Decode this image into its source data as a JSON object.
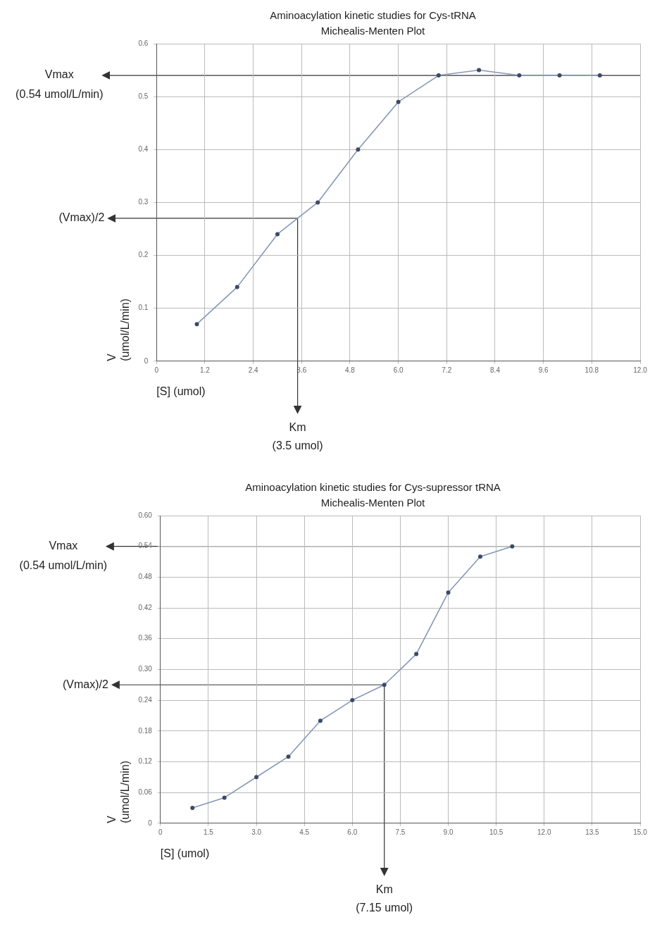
{
  "chart_data": [
    {
      "type": "line",
      "title": "Aminoacylation kinetic studies for Cys-tRNA",
      "subtitle": "Michealis-Menten Plot",
      "xlabel": "[S] (umol)",
      "ylabel": "V\n(umol/L/min)",
      "x": [
        1,
        2,
        3,
        4,
        5,
        6,
        7,
        8,
        9,
        10,
        11
      ],
      "series": [
        {
          "color": "#8597b8",
          "values": [
            0.07,
            0.14,
            0.24,
            0.3,
            0.4,
            0.49,
            0.54,
            0.55,
            0.54,
            0.54,
            0.54
          ]
        }
      ],
      "xlim": [
        0,
        12
      ],
      "xticks": [
        0,
        1.2,
        2.4,
        3.6,
        4.8,
        {
          "value": 6,
          "label": "6.0"
        },
        7.2,
        8.4,
        9.6,
        10.8,
        {
          "value": 12,
          "label": "12.0"
        }
      ],
      "ylim": [
        0,
        0.6
      ],
      "yticks": [
        0,
        0.1,
        0.2,
        0.3,
        0.4,
        0.5,
        0.6
      ],
      "grid": true,
      "marker": "circle",
      "line_style": "solid",
      "ref_lines": [
        {
          "axis": "y",
          "value": 0.54,
          "label": "Vmax\n(0.54 umol/L/min)",
          "color": "#333333"
        },
        {
          "axis": "y",
          "value": 0.27,
          "label": "(Vmax)/2",
          "color": "#333333"
        },
        {
          "axis": "x",
          "value": 3.5,
          "label": "Km\n(3.5 umol)",
          "color": "#333333"
        }
      ]
    },
    {
      "type": "line",
      "title": "Aminoacylation kinetic studies for Cys-supressor tRNA",
      "subtitle": "Michealis-Menten Plot",
      "xlabel": "[S] (umol)",
      "ylabel": "V\n(umol/L/min)",
      "x": [
        1,
        2,
        3,
        4,
        5,
        6,
        7,
        8,
        9,
        10,
        11
      ],
      "series": [
        {
          "color": "#8597b8",
          "values": [
            0.03,
            0.05,
            0.09,
            0.13,
            0.2,
            0.24,
            0.27,
            0.33,
            0.45,
            0.52,
            0.54
          ]
        }
      ],
      "xlim": [
        0,
        15
      ],
      "xticks": [
        0,
        1.5,
        {
          "value": 3,
          "label": "3.0"
        },
        4.5,
        {
          "value": 6,
          "label": "6.0"
        },
        7.5,
        {
          "value": 9,
          "label": "9.0"
        },
        10.5,
        {
          "value": 12,
          "label": "12.0"
        },
        13.5,
        {
          "value": 15,
          "label": "15.0"
        }
      ],
      "ylim": [
        0,
        0.6
      ],
      "yticks": [
        0,
        0.06,
        0.12,
        0.18,
        0.24,
        {
          "value": 0.3,
          "label": "0.30"
        },
        0.36,
        0.42,
        0.48,
        0.54,
        {
          "value": 0.6,
          "label": "0.60"
        }
      ],
      "grid": true,
      "marker": "circle",
      "line_style": "solid",
      "ref_lines": [
        {
          "axis": "y",
          "value": 0.54,
          "label": "Vmax\n(0.54 umol/L/min)",
          "color": "#333333"
        },
        {
          "axis": "y",
          "value": 0.27,
          "label": "(Vmax)/2",
          "color": "#333333"
        },
        {
          "axis": "x",
          "value": 7,
          "label": "Km\n(7.15 umol)",
          "color": "#333333"
        }
      ]
    }
  ]
}
